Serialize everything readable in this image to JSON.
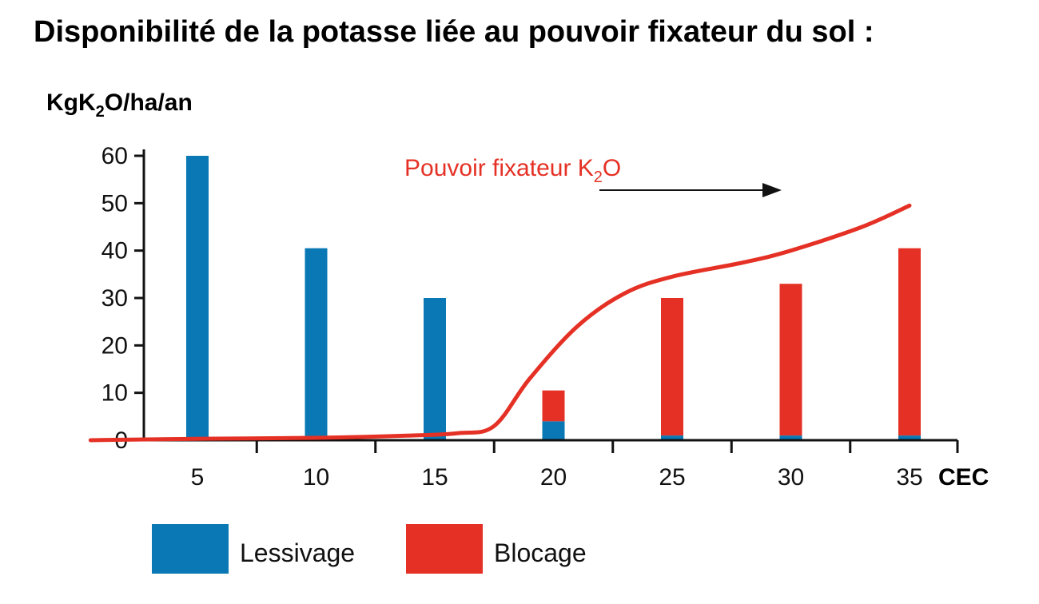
{
  "title": "Disponibilité de la potasse liée au pouvoir fixateur du sol :",
  "colors": {
    "lessivage": "#0a78b4",
    "blocage": "#e53125",
    "curve": "#e53125",
    "axis": "#111111",
    "arrow": "#111111"
  },
  "chart_data": {
    "type": "bar",
    "title": "Disponibilité de la potasse liée au pouvoir fixateur du sol :",
    "ylabel": {
      "prefix": "KgK",
      "sub": "2",
      "suffix": "O/ha/an"
    },
    "xlabel": "CEC",
    "ylim": [
      0,
      60
    ],
    "yticks": [
      "0",
      "10",
      "20",
      "30",
      "40",
      "50",
      "60"
    ],
    "categories": [
      "5",
      "10",
      "15",
      "20",
      "25",
      "30",
      "35"
    ],
    "stacked": true,
    "series": [
      {
        "name": "Lessivage",
        "key": "lessivage",
        "values": [
          60,
          40.5,
          30,
          4,
          1,
          1,
          1
        ]
      },
      {
        "name": "Blocage",
        "key": "blocage",
        "values": [
          0,
          0,
          0,
          6.5,
          29,
          32,
          39.5
        ]
      }
    ],
    "curve": {
      "name": "Pouvoir fixateur K2O",
      "label": {
        "prefix": "Pouvoir fixateur K",
        "sub": "2",
        "suffix": "O"
      },
      "x": [
        0.5,
        5,
        10,
        14,
        16,
        17.5,
        19,
        21,
        23,
        25,
        28,
        30,
        33,
        35
      ],
      "y": [
        0,
        0.3,
        0.5,
        1,
        1.5,
        3,
        13,
        24,
        31,
        34.5,
        37.5,
        40,
        45,
        49.5
      ]
    },
    "legend": [
      "Lessivage",
      "Blocage"
    ],
    "legend_position": "bottom-left"
  }
}
